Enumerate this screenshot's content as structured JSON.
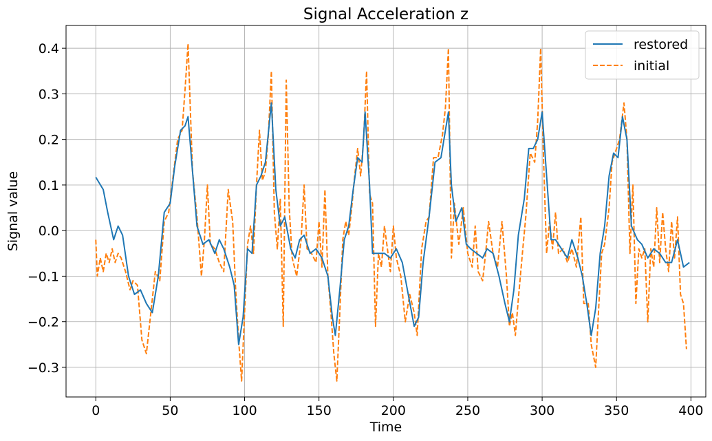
{
  "chart_data": {
    "type": "line",
    "title": "Signal Acceleration z",
    "xlabel": "Time",
    "ylabel": "Signal value",
    "xlim": [
      -20,
      410
    ],
    "ylim": [
      -0.365,
      0.45
    ],
    "grid": true,
    "legend_position": "top-right",
    "x_ticks": [
      0,
      50,
      100,
      150,
      200,
      250,
      300,
      350,
      400
    ],
    "y_ticks": [
      -0.3,
      -0.2,
      -0.1,
      0.0,
      0.1,
      0.2,
      0.3,
      0.4
    ],
    "x_tick_labels": [
      "0",
      "50",
      "100",
      "150",
      "200",
      "250",
      "300",
      "350",
      "400"
    ],
    "y_tick_labels": [
      "−0.3",
      "−0.2",
      "−0.1",
      "0.0",
      "0.1",
      "0.2",
      "0.3",
      "0.4"
    ],
    "series": [
      {
        "name": "restored",
        "color": "#1f77b4",
        "style": "solid",
        "points": [
          [
            0,
            0.117
          ],
          [
            5,
            0.09
          ],
          [
            8,
            0.04
          ],
          [
            12,
            -0.02
          ],
          [
            15,
            0.01
          ],
          [
            18,
            -0.01
          ],
          [
            22,
            -0.1
          ],
          [
            26,
            -0.14
          ],
          [
            30,
            -0.13
          ],
          [
            34,
            -0.16
          ],
          [
            38,
            -0.18
          ],
          [
            42,
            -0.1
          ],
          [
            46,
            0.04
          ],
          [
            50,
            0.06
          ],
          [
            53,
            0.14
          ],
          [
            57,
            0.22
          ],
          [
            60,
            0.23
          ],
          [
            62,
            0.25
          ],
          [
            65,
            0.13
          ],
          [
            68,
            0.01
          ],
          [
            72,
            -0.03
          ],
          [
            76,
            -0.02
          ],
          [
            80,
            -0.05
          ],
          [
            83,
            -0.02
          ],
          [
            86,
            -0.04
          ],
          [
            90,
            -0.08
          ],
          [
            93,
            -0.12
          ],
          [
            96,
            -0.25
          ],
          [
            99,
            -0.19
          ],
          [
            102,
            -0.04
          ],
          [
            105,
            -0.05
          ],
          [
            108,
            0.1
          ],
          [
            111,
            0.12
          ],
          [
            114,
            0.15
          ],
          [
            118,
            0.28
          ],
          [
            121,
            0.09
          ],
          [
            124,
            0.01
          ],
          [
            127,
            0.03
          ],
          [
            131,
            -0.04
          ],
          [
            134,
            -0.06
          ],
          [
            137,
            -0.02
          ],
          [
            140,
            -0.01
          ],
          [
            144,
            -0.05
          ],
          [
            148,
            -0.04
          ],
          [
            152,
            -0.06
          ],
          [
            156,
            -0.1
          ],
          [
            159,
            -0.19
          ],
          [
            161,
            -0.23
          ],
          [
            164,
            -0.13
          ],
          [
            167,
            -0.02
          ],
          [
            170,
            0.01
          ],
          [
            173,
            0.09
          ],
          [
            176,
            0.16
          ],
          [
            179,
            0.15
          ],
          [
            181,
            0.26
          ],
          [
            184,
            0.1
          ],
          [
            186,
            -0.05
          ],
          [
            190,
            -0.05
          ],
          [
            194,
            -0.05
          ],
          [
            198,
            -0.06
          ],
          [
            202,
            -0.04
          ],
          [
            206,
            -0.07
          ],
          [
            210,
            -0.14
          ],
          [
            214,
            -0.21
          ],
          [
            217,
            -0.19
          ],
          [
            220,
            -0.07
          ],
          [
            224,
            0.03
          ],
          [
            228,
            0.15
          ],
          [
            232,
            0.16
          ],
          [
            235,
            0.22
          ],
          [
            237,
            0.26
          ],
          [
            239,
            0.1
          ],
          [
            242,
            0.02
          ],
          [
            246,
            0.05
          ],
          [
            249,
            -0.03
          ],
          [
            252,
            -0.04
          ],
          [
            256,
            -0.05
          ],
          [
            260,
            -0.06
          ],
          [
            263,
            -0.04
          ],
          [
            267,
            -0.05
          ],
          [
            271,
            -0.1
          ],
          [
            275,
            -0.16
          ],
          [
            278,
            -0.2
          ],
          [
            281,
            -0.13
          ],
          [
            284,
            -0.01
          ],
          [
            288,
            0.07
          ],
          [
            291,
            0.18
          ],
          [
            294,
            0.18
          ],
          [
            297,
            0.2
          ],
          [
            300,
            0.26
          ],
          [
            303,
            0.12
          ],
          [
            306,
            -0.02
          ],
          [
            309,
            -0.02
          ],
          [
            313,
            -0.04
          ],
          [
            317,
            -0.06
          ],
          [
            320,
            -0.02
          ],
          [
            324,
            -0.06
          ],
          [
            327,
            -0.1
          ],
          [
            330,
            -0.16
          ],
          [
            333,
            -0.23
          ],
          [
            336,
            -0.17
          ],
          [
            339,
            -0.05
          ],
          [
            342,
            0.01
          ],
          [
            345,
            0.12
          ],
          [
            348,
            0.17
          ],
          [
            351,
            0.16
          ],
          [
            354,
            0.25
          ],
          [
            357,
            0.2
          ],
          [
            360,
            0.01
          ],
          [
            364,
            -0.02
          ],
          [
            367,
            -0.03
          ],
          [
            371,
            -0.06
          ],
          [
            375,
            -0.04
          ],
          [
            379,
            -0.05
          ],
          [
            383,
            -0.07
          ],
          [
            387,
            -0.07
          ],
          [
            391,
            -0.02
          ],
          [
            395,
            -0.08
          ],
          [
            399,
            -0.07
          ]
        ]
      },
      {
        "name": "initial",
        "color": "#ff7f0e",
        "style": "dashed",
        "points": [
          [
            0,
            -0.02
          ],
          [
            1,
            -0.1
          ],
          [
            3,
            -0.06
          ],
          [
            5,
            -0.09
          ],
          [
            7,
            -0.05
          ],
          [
            9,
            -0.07
          ],
          [
            11,
            -0.04
          ],
          [
            13,
            -0.07
          ],
          [
            15,
            -0.05
          ],
          [
            17,
            -0.06
          ],
          [
            20,
            -0.09
          ],
          [
            23,
            -0.13
          ],
          [
            25,
            -0.11
          ],
          [
            28,
            -0.12
          ],
          [
            31,
            -0.24
          ],
          [
            34,
            -0.27
          ],
          [
            37,
            -0.18
          ],
          [
            40,
            -0.09
          ],
          [
            43,
            -0.11
          ],
          [
            46,
            0.02
          ],
          [
            49,
            0.04
          ],
          [
            52,
            0.12
          ],
          [
            55,
            0.2
          ],
          [
            58,
            0.22
          ],
          [
            60,
            0.31
          ],
          [
            62,
            0.41
          ],
          [
            65,
            0.13
          ],
          [
            68,
            0.03
          ],
          [
            71,
            -0.1
          ],
          [
            73,
            -0.02
          ],
          [
            75,
            0.1
          ],
          [
            77,
            -0.03
          ],
          [
            80,
            -0.04
          ],
          [
            83,
            -0.07
          ],
          [
            86,
            -0.09
          ],
          [
            89,
            0.09
          ],
          [
            92,
            0.02
          ],
          [
            94,
            -0.13
          ],
          [
            96,
            -0.24
          ],
          [
            98,
            -0.33
          ],
          [
            100,
            -0.18
          ],
          [
            102,
            -0.03
          ],
          [
            104,
            0.01
          ],
          [
            106,
            -0.05
          ],
          [
            108,
            0.1
          ],
          [
            110,
            0.22
          ],
          [
            112,
            0.11
          ],
          [
            114,
            0.13
          ],
          [
            116,
            0.21
          ],
          [
            118,
            0.35
          ],
          [
            120,
            0.04
          ],
          [
            122,
            -0.04
          ],
          [
            124,
            0.07
          ],
          [
            126,
            -0.21
          ],
          [
            128,
            0.33
          ],
          [
            130,
            0.05
          ],
          [
            132,
            -0.06
          ],
          [
            135,
            -0.1
          ],
          [
            138,
            -0.02
          ],
          [
            140,
            0.1
          ],
          [
            142,
            -0.04
          ],
          [
            145,
            -0.05
          ],
          [
            148,
            -0.07
          ],
          [
            150,
            0.02
          ],
          [
            152,
            -0.08
          ],
          [
            154,
            0.09
          ],
          [
            156,
            -0.1
          ],
          [
            158,
            -0.18
          ],
          [
            160,
            -0.27
          ],
          [
            162,
            -0.33
          ],
          [
            164,
            -0.18
          ],
          [
            166,
            -0.02
          ],
          [
            168,
            0.02
          ],
          [
            170,
            -0.01
          ],
          [
            172,
            0.05
          ],
          [
            174,
            0.12
          ],
          [
            176,
            0.18
          ],
          [
            178,
            0.12
          ],
          [
            180,
            0.2
          ],
          [
            182,
            0.35
          ],
          [
            184,
            0.08
          ],
          [
            186,
            0.06
          ],
          [
            188,
            -0.21
          ],
          [
            190,
            -0.05
          ],
          [
            192,
            -0.08
          ],
          [
            194,
            0.01
          ],
          [
            196,
            -0.04
          ],
          [
            198,
            -0.09
          ],
          [
            200,
            0.01
          ],
          [
            202,
            -0.06
          ],
          [
            205,
            -0.1
          ],
          [
            208,
            -0.2
          ],
          [
            211,
            -0.14
          ],
          [
            214,
            -0.18
          ],
          [
            216,
            -0.23
          ],
          [
            219,
            -0.04
          ],
          [
            222,
            0.02
          ],
          [
            224,
            0.03
          ],
          [
            227,
            0.16
          ],
          [
            230,
            0.16
          ],
          [
            233,
            0.21
          ],
          [
            235,
            0.27
          ],
          [
            237,
            0.4
          ],
          [
            239,
            -0.06
          ],
          [
            241,
            0.06
          ],
          [
            244,
            -0.03
          ],
          [
            247,
            0.05
          ],
          [
            250,
            -0.05
          ],
          [
            253,
            -0.08
          ],
          [
            255,
            0.01
          ],
          [
            257,
            -0.09
          ],
          [
            260,
            -0.11
          ],
          [
            262,
            -0.05
          ],
          [
            264,
            0.02
          ],
          [
            267,
            -0.05
          ],
          [
            270,
            -0.08
          ],
          [
            273,
            0.02
          ],
          [
            276,
            -0.1
          ],
          [
            278,
            -0.21
          ],
          [
            280,
            -0.18
          ],
          [
            282,
            -0.23
          ],
          [
            284,
            -0.15
          ],
          [
            287,
            -0.04
          ],
          [
            289,
            0.03
          ],
          [
            292,
            0.17
          ],
          [
            295,
            0.15
          ],
          [
            297,
            0.24
          ],
          [
            299,
            0.4
          ],
          [
            301,
            0.15
          ],
          [
            303,
            -0.05
          ],
          [
            305,
            0.02
          ],
          [
            307,
            -0.04
          ],
          [
            309,
            0.04
          ],
          [
            311,
            -0.05
          ],
          [
            314,
            -0.04
          ],
          [
            317,
            -0.07
          ],
          [
            320,
            -0.04
          ],
          [
            323,
            -0.08
          ],
          [
            326,
            0.03
          ],
          [
            328,
            -0.16
          ],
          [
            331,
            -0.16
          ],
          [
            333,
            -0.25
          ],
          [
            336,
            -0.3
          ],
          [
            338,
            -0.17
          ],
          [
            340,
            -0.05
          ],
          [
            342,
            -0.03
          ],
          [
            345,
            0.05
          ],
          [
            347,
            0.15
          ],
          [
            350,
            0.18
          ],
          [
            352,
            0.2
          ],
          [
            355,
            0.28
          ],
          [
            357,
            0.2
          ],
          [
            359,
            -0.05
          ],
          [
            361,
            0.1
          ],
          [
            363,
            -0.16
          ],
          [
            365,
            -0.04
          ],
          [
            367,
            -0.06
          ],
          [
            369,
            -0.04
          ],
          [
            371,
            -0.2
          ],
          [
            373,
            -0.04
          ],
          [
            375,
            -0.08
          ],
          [
            377,
            0.05
          ],
          [
            379,
            -0.07
          ],
          [
            381,
            0.04
          ],
          [
            383,
            -0.04
          ],
          [
            385,
            -0.09
          ],
          [
            387,
            0.02
          ],
          [
            389,
            -0.06
          ],
          [
            391,
            0.03
          ],
          [
            393,
            -0.14
          ],
          [
            395,
            -0.16
          ],
          [
            397,
            -0.26
          ]
        ]
      }
    ]
  }
}
